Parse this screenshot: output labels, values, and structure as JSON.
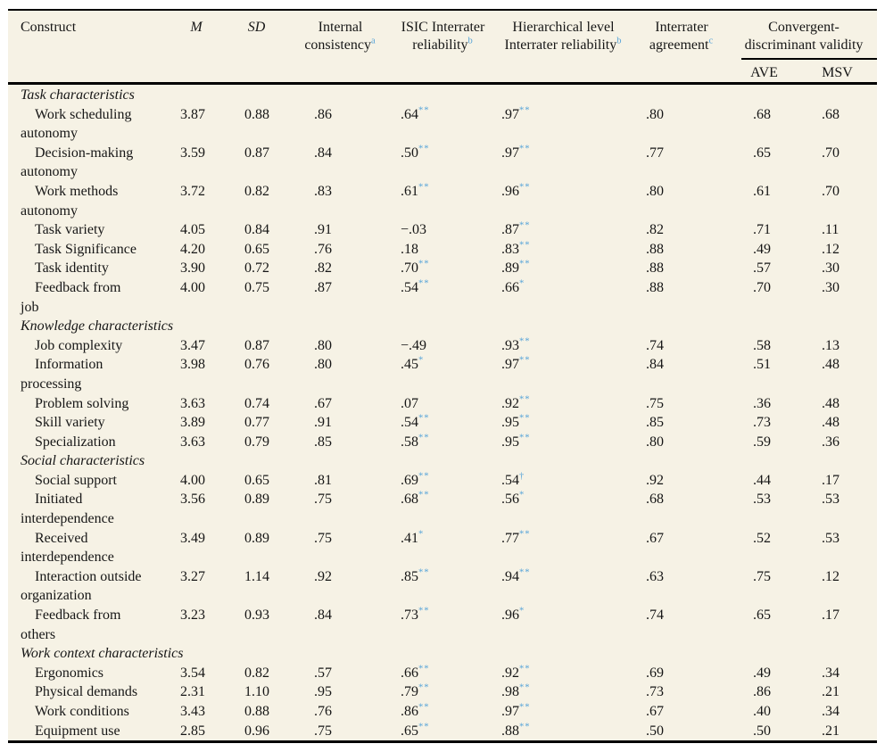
{
  "colors": {
    "table_background": "#f6f2e5",
    "text": "#161616",
    "superscript_blue": "#55a3d8",
    "rule_black": "#000000"
  },
  "column_slugs": [
    "construct",
    "m",
    "sd",
    "internal-consistency",
    "isic-interrater-reliability",
    "hierarchical-interrater-reliability",
    "interrater-agreement"
  ],
  "cell_slugs": [
    "m",
    "sd",
    "internal-consistency",
    "isic-interrater-reliability",
    "hierarchical-interrater-reliability",
    "interrater-agreement",
    "ave",
    "msv"
  ],
  "header": {
    "columns": [
      {
        "label": "Construct"
      },
      {
        "label": "M",
        "italic": true
      },
      {
        "label": "SD",
        "italic": true
      },
      {
        "label": "Internal\nconsistency",
        "sup": "a"
      },
      {
        "label": "ISIC Interrater\nreliability",
        "sup": "b"
      },
      {
        "label": "Hierarchical level\nInterrater reliability",
        "sup": "b"
      },
      {
        "label": "Interrater\nagreement",
        "sup": "c"
      }
    ],
    "spanner": {
      "label": "Convergent-\ndiscriminant validity",
      "subcolumns": [
        "AVE",
        "MSV"
      ]
    }
  },
  "rows": [
    {
      "section": "Task characteristics"
    },
    {
      "label": "Work scheduling\nautonomy",
      "cells": [
        "3.87",
        "0.88",
        ".86",
        {
          "v": ".64",
          "sup": "**"
        },
        {
          "v": ".97",
          "sup": "**"
        },
        ".80",
        ".68",
        ".68"
      ]
    },
    {
      "label": "Decision-making\nautonomy",
      "cells": [
        "3.59",
        "0.87",
        ".84",
        {
          "v": ".50",
          "sup": "**"
        },
        {
          "v": ".97",
          "sup": "**"
        },
        ".77",
        ".65",
        ".70"
      ]
    },
    {
      "label": "Work methods\nautonomy",
      "cells": [
        "3.72",
        "0.82",
        ".83",
        {
          "v": ".61",
          "sup": "**"
        },
        {
          "v": ".96",
          "sup": "**"
        },
        ".80",
        ".61",
        ".70"
      ]
    },
    {
      "label": "Task variety",
      "cells": [
        "4.05",
        "0.84",
        ".91",
        "−.03",
        {
          "v": ".87",
          "sup": "**"
        },
        ".82",
        ".71",
        ".11"
      ]
    },
    {
      "label": "Task Significance",
      "cells": [
        "4.20",
        "0.65",
        ".76",
        ".18",
        {
          "v": ".83",
          "sup": "**"
        },
        ".88",
        ".49",
        ".12"
      ]
    },
    {
      "label": "Task identity",
      "cells": [
        "3.90",
        "0.72",
        ".82",
        {
          "v": ".70",
          "sup": "**"
        },
        {
          "v": ".89",
          "sup": "**"
        },
        ".88",
        ".57",
        ".30"
      ]
    },
    {
      "label": "Feedback from\njob",
      "cells": [
        "4.00",
        "0.75",
        ".87",
        {
          "v": ".54",
          "sup": "**"
        },
        {
          "v": ".66",
          "sup": "*"
        },
        ".88",
        ".70",
        ".30"
      ]
    },
    {
      "section": "Knowledge characteristics"
    },
    {
      "label": "Job complexity",
      "cells": [
        "3.47",
        "0.87",
        ".80",
        "−.49",
        {
          "v": ".93",
          "sup": "**"
        },
        ".74",
        ".58",
        ".13"
      ]
    },
    {
      "label": "Information\nprocessing",
      "cells": [
        "3.98",
        "0.76",
        ".80",
        {
          "v": ".45",
          "sup": "*"
        },
        {
          "v": ".97",
          "sup": "**"
        },
        ".84",
        ".51",
        ".48"
      ]
    },
    {
      "label": "Problem solving",
      "cells": [
        "3.63",
        "0.74",
        ".67",
        ".07",
        {
          "v": ".92",
          "sup": "**"
        },
        ".75",
        ".36",
        ".48"
      ]
    },
    {
      "label": "Skill variety",
      "cells": [
        "3.89",
        "0.77",
        ".91",
        {
          "v": ".54",
          "sup": "**"
        },
        {
          "v": ".95",
          "sup": "**"
        },
        ".85",
        ".73",
        ".48"
      ]
    },
    {
      "label": "Specialization",
      "cells": [
        "3.63",
        "0.79",
        ".85",
        {
          "v": ".58",
          "sup": "**"
        },
        {
          "v": ".95",
          "sup": "**"
        },
        ".80",
        ".59",
        ".36"
      ]
    },
    {
      "section": "Social characteristics"
    },
    {
      "label": "Social support",
      "cells": [
        "4.00",
        "0.65",
        ".81",
        {
          "v": ".69",
          "sup": "**"
        },
        {
          "v": ".54",
          "sup": "†"
        },
        ".92",
        ".44",
        ".17"
      ]
    },
    {
      "label": "Initiated\ninterdependence",
      "cells": [
        "3.56",
        "0.89",
        ".75",
        {
          "v": ".68",
          "sup": "**"
        },
        {
          "v": ".56",
          "sup": "*"
        },
        ".68",
        ".53",
        ".53"
      ]
    },
    {
      "label": "Received\ninterdependence",
      "cells": [
        "3.49",
        "0.89",
        ".75",
        {
          "v": ".41",
          "sup": "*"
        },
        {
          "v": ".77",
          "sup": "**"
        },
        ".67",
        ".52",
        ".53"
      ]
    },
    {
      "label": "Interaction outside\norganization",
      "cells": [
        "3.27",
        "1.14",
        ".92",
        {
          "v": ".85",
          "sup": "**"
        },
        {
          "v": ".94",
          "sup": "**"
        },
        ".63",
        ".75",
        ".12"
      ]
    },
    {
      "label": "Feedback from\nothers",
      "cells": [
        "3.23",
        "0.93",
        ".84",
        {
          "v": ".73",
          "sup": "**"
        },
        {
          "v": ".96",
          "sup": "*"
        },
        ".74",
        ".65",
        ".17"
      ]
    },
    {
      "section": "Work context characteristics"
    },
    {
      "label": "Ergonomics",
      "cells": [
        "3.54",
        "0.82",
        ".57",
        {
          "v": ".66",
          "sup": "**"
        },
        {
          "v": ".92",
          "sup": "**"
        },
        ".69",
        ".49",
        ".34"
      ]
    },
    {
      "label": "Physical demands",
      "cells": [
        "2.31",
        "1.10",
        ".95",
        {
          "v": ".79",
          "sup": "**"
        },
        {
          "v": ".98",
          "sup": "**"
        },
        ".73",
        ".86",
        ".21"
      ]
    },
    {
      "label": "Work conditions",
      "cells": [
        "3.43",
        "0.88",
        ".76",
        {
          "v": ".86",
          "sup": "**"
        },
        {
          "v": ".97",
          "sup": "**"
        },
        ".67",
        ".40",
        ".34"
      ]
    },
    {
      "label": "Equipment use",
      "cells": [
        "2.85",
        "0.96",
        ".75",
        {
          "v": ".65",
          "sup": "**"
        },
        {
          "v": ".88",
          "sup": "**"
        },
        ".50",
        ".50",
        ".21"
      ]
    }
  ]
}
